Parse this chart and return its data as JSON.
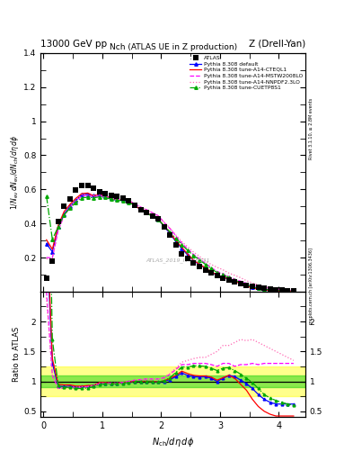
{
  "title_top_left": "13000 GeV pp",
  "title_top_right": "Z (Drell-Yan)",
  "plot_title": "Nch (ATLAS UE in Z production)",
  "ylabel_main": "1/N_{ev} dN_{ev}/dN_{ch}/d\\eta d\\phi",
  "ylabel_ratio": "Ratio to ATLAS",
  "xlabel": "N_{ch}/d\\eta d\\phi",
  "watermark": "ATLAS_2019_I1736531",
  "right_label_top": "Rivet 3.1.10, ≥ 2.8M events",
  "right_label_bottom": "mcplots.cern.ch [arXiv:1306.3436]",
  "ylim_main": [
    0.0,
    1.4
  ],
  "ylim_ratio": [
    0.4,
    2.5
  ],
  "xlim": [
    -0.05,
    4.45
  ],
  "yticks_main": [
    0.2,
    0.4,
    0.6,
    0.8,
    1.0,
    1.2,
    1.4
  ],
  "yticks_ratio": [
    0.5,
    1.0,
    1.5,
    2.0
  ],
  "xticks": [
    0,
    1,
    2,
    3,
    4
  ],
  "atlas_x": [
    0.05,
    0.15,
    0.25,
    0.35,
    0.45,
    0.55,
    0.65,
    0.75,
    0.85,
    0.95,
    1.05,
    1.15,
    1.25,
    1.35,
    1.45,
    1.55,
    1.65,
    1.75,
    1.85,
    1.95,
    2.05,
    2.15,
    2.25,
    2.35,
    2.45,
    2.55,
    2.65,
    2.75,
    2.85,
    2.95,
    3.05,
    3.15,
    3.25,
    3.35,
    3.45,
    3.55,
    3.65,
    3.75,
    3.85,
    3.95,
    4.05,
    4.15,
    4.25
  ],
  "atlas_y": [
    0.08,
    0.18,
    0.41,
    0.5,
    0.545,
    0.595,
    0.625,
    0.622,
    0.605,
    0.585,
    0.575,
    0.565,
    0.558,
    0.55,
    0.535,
    0.505,
    0.482,
    0.462,
    0.445,
    0.428,
    0.382,
    0.33,
    0.272,
    0.222,
    0.195,
    0.168,
    0.148,
    0.128,
    0.11,
    0.095,
    0.08,
    0.068,
    0.058,
    0.048,
    0.038,
    0.03,
    0.024,
    0.019,
    0.015,
    0.012,
    0.009,
    0.007,
    0.005
  ],
  "atlas_color": "#000000",
  "series": [
    {
      "label": "Pythia 8.308 default",
      "color": "#0000ff",
      "style": "solid",
      "marker": "^",
      "ratio_mod": [
        3.5,
        1.3,
        0.92,
        0.91,
        0.92,
        0.9,
        0.91,
        0.92,
        0.93,
        0.97,
        0.97,
        0.97,
        0.97,
        0.98,
        0.99,
        1.0,
        1.0,
        1.0,
        1.0,
        0.99,
        1.0,
        1.03,
        1.08,
        1.14,
        1.1,
        1.08,
        1.07,
        1.08,
        1.05,
        1.0,
        1.05,
        1.1,
        1.08,
        1.02,
        0.96,
        0.88,
        0.78,
        0.7,
        0.65,
        0.62,
        0.62,
        0.62,
        0.62
      ]
    },
    {
      "label": "Pythia 8.308 tune-A14-CTEQL1",
      "color": "#ff0000",
      "style": "solid",
      "marker": null,
      "ratio_mod": [
        3.8,
        1.38,
        0.95,
        0.94,
        0.94,
        0.92,
        0.92,
        0.93,
        0.93,
        0.98,
        0.98,
        0.97,
        0.97,
        0.98,
        0.99,
        1.0,
        1.0,
        1.0,
        1.0,
        0.99,
        1.01,
        1.05,
        1.1,
        1.17,
        1.13,
        1.1,
        1.09,
        1.09,
        1.07,
        1.02,
        1.06,
        1.1,
        1.05,
        0.95,
        0.85,
        0.7,
        0.58,
        0.5,
        0.45,
        0.42,
        0.42,
        0.42,
        0.42
      ]
    },
    {
      "label": "Pythia 8.308 tune-A14-MSTW2008LO",
      "color": "#ff00ff",
      "style": "dashed",
      "marker": null,
      "ratio_mod": [
        2.5,
        1.1,
        0.88,
        0.89,
        0.91,
        0.89,
        0.9,
        0.91,
        0.92,
        0.96,
        0.97,
        0.97,
        0.97,
        0.98,
        1.0,
        1.02,
        1.03,
        1.04,
        1.04,
        1.04,
        1.06,
        1.12,
        1.2,
        1.28,
        1.28,
        1.3,
        1.3,
        1.3,
        1.28,
        1.25,
        1.3,
        1.3,
        1.25,
        1.28,
        1.28,
        1.3,
        1.28,
        1.3,
        1.3,
        1.3,
        1.3,
        1.3,
        1.3
      ]
    },
    {
      "label": "Pythia 8.308 tune-A14-NNPDF2.3LO",
      "color": "#ff69b4",
      "style": "dotted",
      "marker": null,
      "ratio_mod": [
        2.4,
        1.08,
        0.88,
        0.89,
        0.91,
        0.9,
        0.91,
        0.91,
        0.93,
        0.97,
        0.97,
        0.97,
        0.97,
        0.98,
        1.0,
        1.02,
        1.03,
        1.04,
        1.04,
        1.04,
        1.07,
        1.13,
        1.22,
        1.32,
        1.35,
        1.38,
        1.4,
        1.4,
        1.45,
        1.5,
        1.6,
        1.6,
        1.65,
        1.7,
        1.68,
        1.7,
        1.65,
        1.6,
        1.55,
        1.5,
        1.45,
        1.4,
        1.35
      ]
    },
    {
      "label": "Pythia 8.308 tune-CUETP8S1",
      "color": "#00aa00",
      "style": "dashdot",
      "marker": "^",
      "ratio_mod": [
        7.0,
        1.7,
        0.93,
        0.9,
        0.9,
        0.88,
        0.88,
        0.89,
        0.91,
        0.95,
        0.96,
        0.96,
        0.96,
        0.97,
        0.98,
        1.0,
        1.0,
        1.0,
        0.99,
        0.99,
        1.01,
        1.06,
        1.15,
        1.24,
        1.24,
        1.26,
        1.26,
        1.25,
        1.22,
        1.18,
        1.22,
        1.23,
        1.18,
        1.12,
        1.05,
        0.98,
        0.88,
        0.78,
        0.72,
        0.68,
        0.65,
        0.62,
        0.6
      ]
    }
  ],
  "band_yellow_low": 0.75,
  "band_yellow_high": 1.25,
  "band_green_low": 0.9,
  "band_green_high": 1.1,
  "band_color_yellow": "#ffff00",
  "band_color_green": "#00cc00",
  "band_alpha": 0.45
}
